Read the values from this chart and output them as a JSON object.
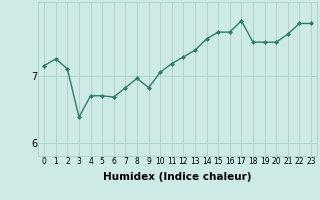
{
  "xlabel": "Humidex (Indice chaleur)",
  "x": [
    0,
    1,
    2,
    3,
    4,
    5,
    6,
    7,
    8,
    9,
    10,
    11,
    12,
    13,
    14,
    15,
    16,
    17,
    18,
    19,
    20,
    21,
    22,
    23
  ],
  "y": [
    7.15,
    7.25,
    7.1,
    6.38,
    6.7,
    6.7,
    6.68,
    6.82,
    6.96,
    6.82,
    7.05,
    7.18,
    7.28,
    7.38,
    7.55,
    7.65,
    7.65,
    7.82,
    7.5,
    7.5,
    7.5,
    7.62,
    7.78,
    7.78
  ],
  "line_color": "#2e7d6e",
  "marker": "D",
  "marker_size": 2.0,
  "bg_color": "#ceeae6",
  "grid_color": "#aacfca",
  "ylim": [
    5.8,
    8.1
  ],
  "yticks": [
    6,
    7
  ],
  "xlim": [
    -0.5,
    23.5
  ],
  "xtick_fontsize": 5.5,
  "ytick_fontsize": 7.0,
  "xlabel_fontsize": 7.5,
  "linewidth": 1.0
}
